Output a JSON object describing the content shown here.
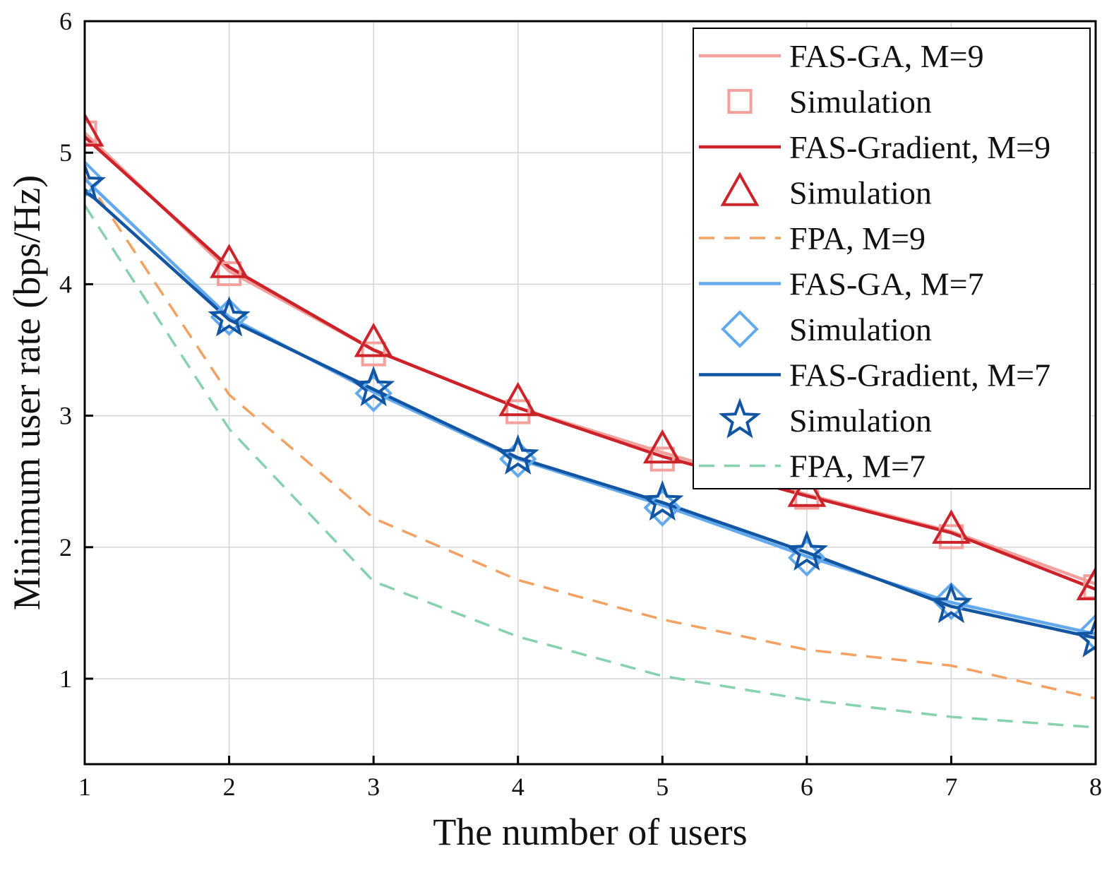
{
  "chart_data": {
    "type": "line",
    "title": "",
    "xlabel": "The number of users",
    "ylabel": "Minimum user rate (bps/Hz)",
    "xlim": [
      1,
      8
    ],
    "ylim": [
      0.35,
      6
    ],
    "grid": true,
    "legend_position": "top-right",
    "x_ticks": [
      1,
      2,
      3,
      4,
      5,
      6,
      7,
      8
    ],
    "y_ticks": [
      1,
      2,
      3,
      4,
      5,
      6
    ],
    "x_tick_labels": [
      "1",
      "2",
      "3",
      "4",
      "5",
      "6",
      "7",
      "8"
    ],
    "y_tick_labels": [
      "1",
      "2",
      "3",
      "4",
      "5",
      "6"
    ],
    "x": [
      1,
      2,
      3,
      4,
      5,
      6,
      7,
      8
    ],
    "series": [
      {
        "name": "FAS-GA, M=9",
        "legend": "FAS-GA, M=9",
        "kind": "line",
        "color": "#f4a09c",
        "dash": "none",
        "values": [
          5.15,
          4.1,
          3.5,
          3.06,
          2.72,
          2.4,
          2.12,
          1.72
        ]
      },
      {
        "name": "Simulation (FAS-GA, M=9)",
        "legend": "Simulation",
        "kind": "markers",
        "marker": "square",
        "color": "#f4a09c",
        "values": [
          5.15,
          4.08,
          3.47,
          3.03,
          2.67,
          2.38,
          2.08,
          1.7
        ]
      },
      {
        "name": "FAS-Gradient, M=9",
        "legend": "FAS-Gradient, M=9",
        "kind": "line",
        "color": "#cc2229",
        "dash": "none",
        "values": [
          5.12,
          4.13,
          3.5,
          3.06,
          2.69,
          2.39,
          2.11,
          1.68
        ]
      },
      {
        "name": "Simulation (FAS-Gradient, M=9)",
        "legend": "Simulation",
        "kind": "markers",
        "marker": "triangle",
        "color": "#cc2229",
        "values": [
          5.15,
          4.15,
          3.55,
          3.1,
          2.74,
          2.41,
          2.13,
          1.7
        ]
      },
      {
        "name": "FPA, M=9",
        "legend": "FPA, M=9",
        "kind": "line",
        "color": "#f4a060",
        "dash": "dashed",
        "values": [
          4.82,
          3.16,
          2.22,
          1.75,
          1.45,
          1.22,
          1.1,
          0.85
        ]
      },
      {
        "name": "FAS-GA, M=7",
        "legend": "FAS-GA, M=7",
        "kind": "line",
        "color": "#63a9ee",
        "dash": "none",
        "values": [
          4.8,
          3.75,
          3.18,
          2.67,
          2.32,
          1.93,
          1.58,
          1.34
        ]
      },
      {
        "name": "Simulation (FAS-GA, M=7)",
        "legend": "Simulation",
        "kind": "markers",
        "marker": "diamond",
        "color": "#63a9ee",
        "values": [
          4.8,
          3.75,
          3.17,
          2.67,
          2.3,
          1.92,
          1.59,
          1.35
        ]
      },
      {
        "name": "FAS-Gradient, M=7",
        "legend": "FAS-Gradient, M=7",
        "kind": "line",
        "color": "#1255a3",
        "dash": "none",
        "values": [
          4.72,
          3.73,
          3.2,
          2.68,
          2.34,
          1.96,
          1.55,
          1.31
        ]
      },
      {
        "name": "Simulation (FAS-Gradient, M=7)",
        "legend": "Simulation",
        "kind": "markers",
        "marker": "star",
        "color": "#1255a3",
        "values": [
          4.76,
          3.74,
          3.21,
          2.69,
          2.34,
          1.96,
          1.56,
          1.3
        ]
      },
      {
        "name": "FPA, M=7",
        "legend": "FPA, M=7",
        "kind": "line",
        "color": "#86d1ae",
        "dash": "dashed",
        "values": [
          4.6,
          2.9,
          1.74,
          1.32,
          1.02,
          0.84,
          0.71,
          0.63
        ]
      }
    ]
  }
}
